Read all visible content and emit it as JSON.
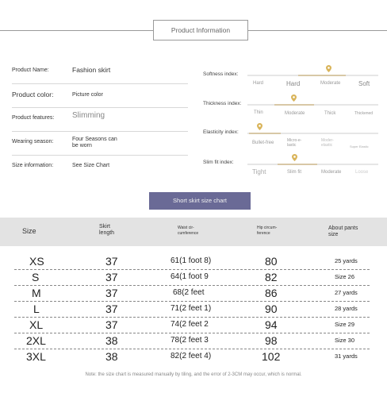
{
  "header": {
    "title": "Product Information"
  },
  "info": [
    {
      "label": "Product Name:",
      "value": "Fashion skirt"
    },
    {
      "label": "Product color:",
      "value": "Picture color"
    },
    {
      "label": "Product features:",
      "value": "Slimming"
    },
    {
      "label": "Wearing season:",
      "value": "Four Seasons can be worn"
    },
    {
      "label": "Size information:",
      "value": "See Size Chart"
    }
  ],
  "indices": [
    {
      "label": "Softness index:",
      "options": [
        "Hard",
        "Hard",
        "Moderate",
        "Soft"
      ],
      "selected": 2
    },
    {
      "label": "Thickness index:",
      "options": [
        "Thin",
        "Moderate",
        "Thick",
        "Thickened"
      ],
      "selected": 1
    },
    {
      "label": "Elasticity index:",
      "options": [
        "Bullet-free",
        "Micro-e- lastic",
        "Moder- elastic",
        "Super Elastic"
      ],
      "selected": 0
    },
    {
      "label": "Slim fit index:",
      "options": [
        "Tight",
        "Slim fit",
        "Moderate",
        "Loose"
      ],
      "selected": 1
    }
  ],
  "size_chart_button": "Short skirt size chart",
  "table": {
    "headers": [
      "Size",
      "Skirt length",
      "Waist cir- cumference",
      "Hip circum- ference",
      "About pants size"
    ],
    "rows": [
      [
        "XS",
        "37",
        "61(1 foot 8)",
        "80",
        "25 yards"
      ],
      [
        "S",
        "37",
        "64(1 foot 9",
        "82",
        "Size 26"
      ],
      [
        "M",
        "37",
        "68(2 feet",
        "86",
        "27 yards"
      ],
      [
        "L",
        "37",
        "71(2 feet 1)",
        "90",
        "28 yards"
      ],
      [
        "XL",
        "37",
        "74(2 feet 2",
        "94",
        "Size 29"
      ],
      [
        "2XL",
        "38",
        "78(2 feet 3",
        "98",
        "Size 30"
      ],
      [
        "3XL",
        "38",
        "82(2 feet 4)",
        "102",
        "31 yards"
      ]
    ],
    "note": "Note: the size chart is measured manually by tiling, and the error of 2-3CM may occur, which is normal."
  }
}
